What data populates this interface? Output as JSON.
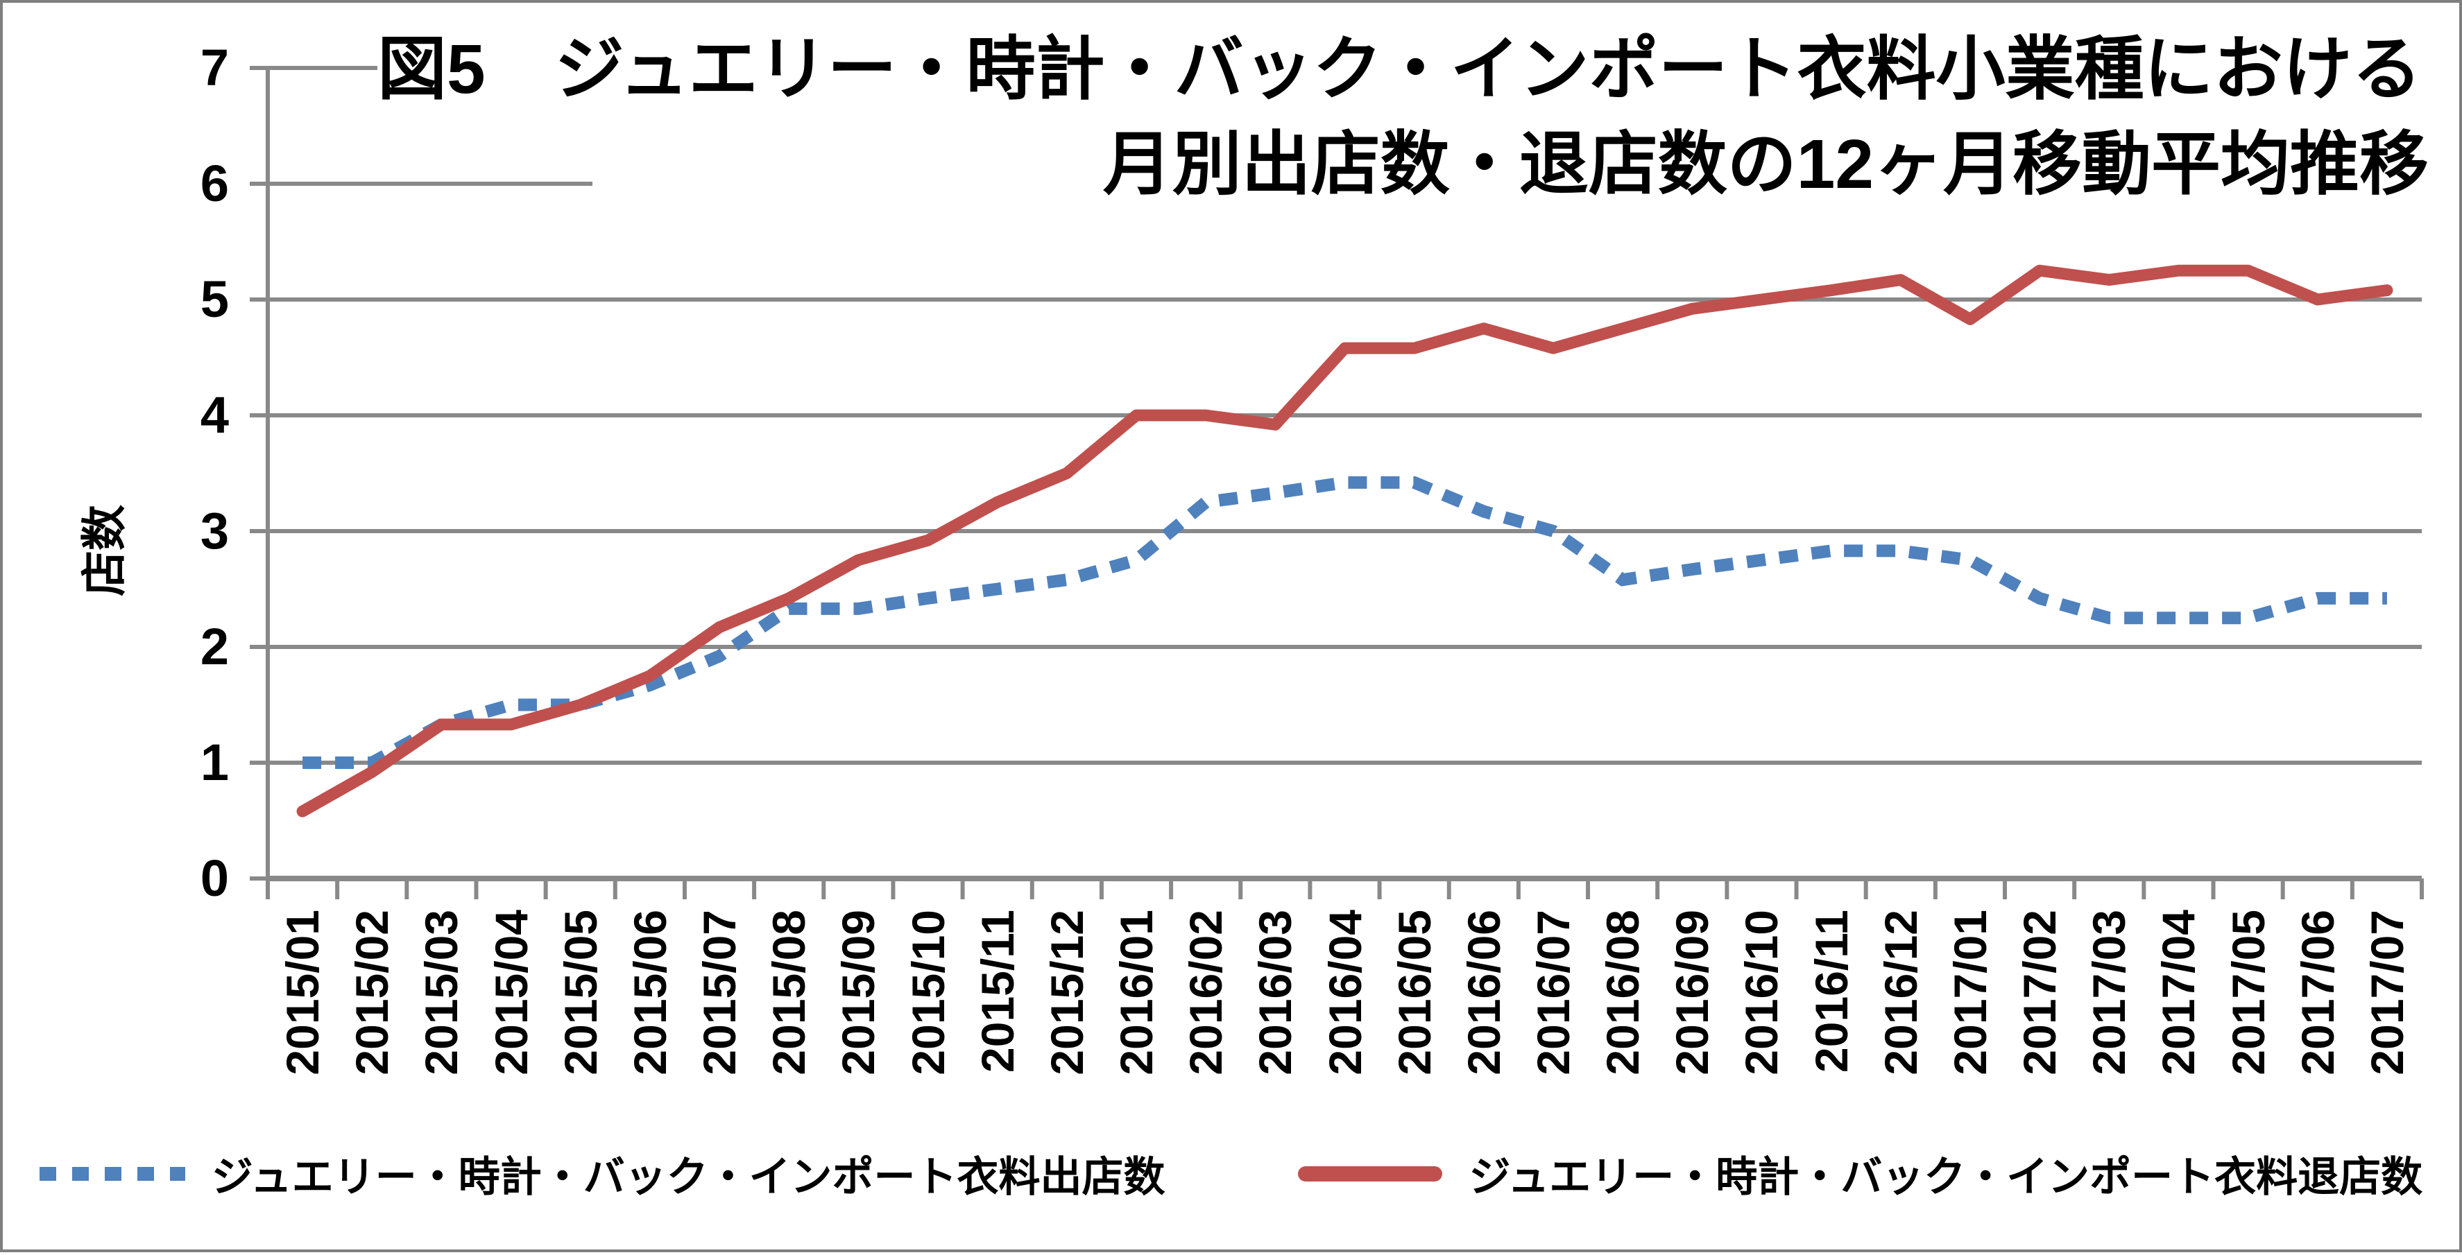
{
  "header": {
    "title_line1": "図5　ジュエリー・時計・バック・インポート衣料小業種における",
    "title_line2": "月別出店数・退店数の12ヶ月移動平均推移"
  },
  "colors": {
    "openings_series": "#4F81BD",
    "closings_series": "#C0504D",
    "gridline": "#898989",
    "axis": "#898989",
    "text": "#000000",
    "frame_border": "#7F7F7F"
  },
  "chart_data": {
    "type": "line",
    "title": "図5 ジュエリー・時計・バック・インポート衣料小業種における 月別出店数・退店数の12ヶ月移動平均推移",
    "ylabel": "店数",
    "xlabel": "",
    "ylim": [
      0,
      7
    ],
    "y_ticks": [
      0,
      1,
      2,
      3,
      4,
      5,
      6,
      7
    ],
    "grid": true,
    "legend_position": "bottom",
    "categories": [
      "2015/01",
      "2015/02",
      "2015/03",
      "2015/04",
      "2015/05",
      "2015/06",
      "2015/07",
      "2015/08",
      "2015/09",
      "2015/10",
      "2015/11",
      "2015/12",
      "2016/01",
      "2016/02",
      "2016/03",
      "2016/04",
      "2016/05",
      "2016/06",
      "2016/07",
      "2016/08",
      "2016/09",
      "2016/10",
      "2016/11",
      "2016/12",
      "2017/01",
      "2017/02",
      "2017/03",
      "2017/04",
      "2017/05",
      "2017/06",
      "2017/07"
    ],
    "series": [
      {
        "name": "ジュエリー・時計・バック・インポート衣料出店数",
        "style": "dotted",
        "color": "#4F81BD",
        "values": [
          1.0,
          1.0,
          1.33,
          1.5,
          1.5,
          1.67,
          1.92,
          2.33,
          2.33,
          2.42,
          2.5,
          2.58,
          2.75,
          3.25,
          3.33,
          3.42,
          3.42,
          3.17,
          3.0,
          2.58,
          2.67,
          2.75,
          2.83,
          2.83,
          2.75,
          2.42,
          2.25,
          2.25,
          2.25,
          2.42,
          2.42
        ]
      },
      {
        "name": "ジュエリー・時計・バック・インポート衣料退店数",
        "style": "solid",
        "color": "#C0504D",
        "values": [
          0.58,
          0.92,
          1.33,
          1.33,
          1.5,
          1.75,
          2.17,
          2.42,
          2.75,
          2.92,
          3.25,
          3.5,
          4.0,
          4.0,
          3.92,
          4.58,
          4.58,
          4.75,
          4.58,
          4.75,
          4.92,
          5.0,
          5.08,
          5.17,
          4.83,
          5.25,
          5.17,
          5.25,
          5.25,
          5.0,
          5.08
        ]
      }
    ]
  }
}
